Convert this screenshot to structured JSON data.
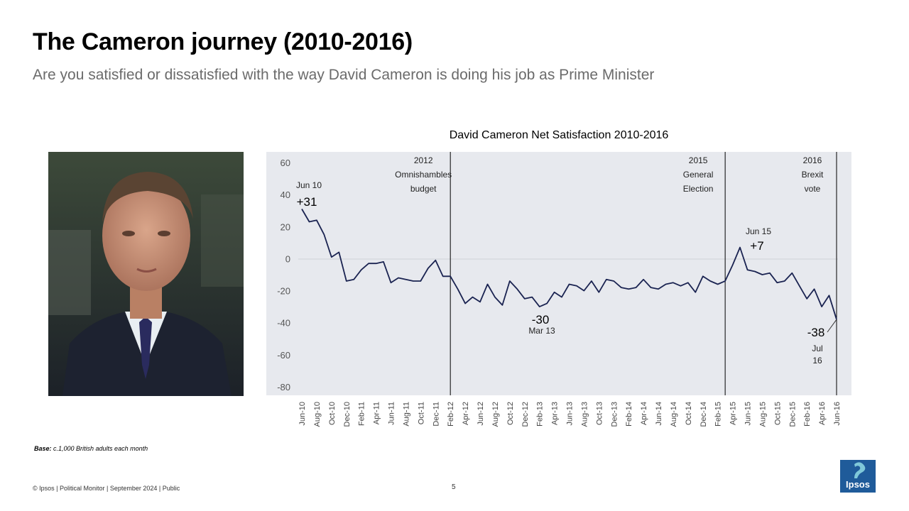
{
  "header": {
    "title": "The Cameron journey (2010-2016)",
    "subtitle": "Are you satisfied or dissatisfied with the way David Cameron is doing his job as Prime Minister"
  },
  "footnote": {
    "base_label": "Base:",
    "base_text": " c.1,000 British adults each month"
  },
  "footer": {
    "text": "© Ipsos | Political Monitor | September 2024 | Public",
    "page_number": "5"
  },
  "logo": {
    "text": "Ipsos",
    "color": "#1f5b9a"
  },
  "chart_data": {
    "type": "line",
    "title": "David Cameron Net Satisfaction 2010-2016",
    "xlabel": "",
    "ylabel": "",
    "ylim": [
      -80,
      60
    ],
    "yticks": [
      60,
      40,
      20,
      0,
      -20,
      -40,
      -60,
      -80
    ],
    "grid": false,
    "background": "#e7e9ee",
    "line_color": "#1a2351",
    "x_tick_labels": [
      "Jun-10",
      "Aug-10",
      "Oct-10",
      "Dec-10",
      "Feb-11",
      "Apr-11",
      "Jun-11",
      "Aug-11",
      "Oct-11",
      "Dec-11",
      "Feb-12",
      "Apr-12",
      "Jun-12",
      "Aug-12",
      "Oct-12",
      "Dec-12",
      "Feb-13",
      "Apr-13",
      "Jun-13",
      "Aug-13",
      "Oct-13",
      "Dec-13",
      "Feb-14",
      "Apr-14",
      "Jun-14",
      "Aug-14",
      "Oct-14",
      "Dec-14",
      "Feb-15",
      "Apr-15",
      "Jun-15",
      "Aug-15",
      "Oct-15",
      "Dec-15",
      "Feb-16",
      "Apr-16",
      "Jun-16"
    ],
    "series": [
      {
        "name": "",
        "values": [
          31,
          23,
          24,
          15,
          1,
          4,
          -14,
          -13,
          -7,
          -3,
          -3,
          -2,
          -15,
          -12,
          -13,
          -14,
          -14,
          -6,
          -1,
          -11,
          -11,
          -19,
          -28,
          -24,
          -27,
          -16,
          -24,
          -29,
          -14,
          -19,
          -25,
          -24,
          -30,
          -28,
          -21,
          -24,
          -16,
          -17,
          -20,
          -14,
          -21,
          -13,
          -14,
          -18,
          -19,
          -18,
          -13,
          -18,
          -19,
          -16,
          -15,
          -17,
          -15,
          -21,
          -11,
          -14,
          -16,
          -14,
          -4,
          7,
          -7,
          -8,
          -10,
          -9,
          -15,
          -14,
          -9,
          -17,
          -25,
          -19,
          -30,
          -23,
          -38
        ]
      }
    ],
    "event_lines": [
      {
        "index": 20,
        "lines": [
          "2012",
          "Omnishambles",
          "budget"
        ]
      },
      {
        "index": 57,
        "lines": [
          "2015",
          "General",
          "Election"
        ]
      },
      {
        "index": 72,
        "lines": [
          "2016",
          "Brexit",
          "vote"
        ]
      }
    ],
    "annotations": [
      {
        "index": 0,
        "value": "+31",
        "label": "Jun 10"
      },
      {
        "index": 32,
        "value": "-30",
        "label": "Mar 13"
      },
      {
        "index": 59,
        "value": "+7",
        "label": "Jun 15"
      },
      {
        "index": 72,
        "value": "-38",
        "label": "Jul 16"
      }
    ]
  }
}
